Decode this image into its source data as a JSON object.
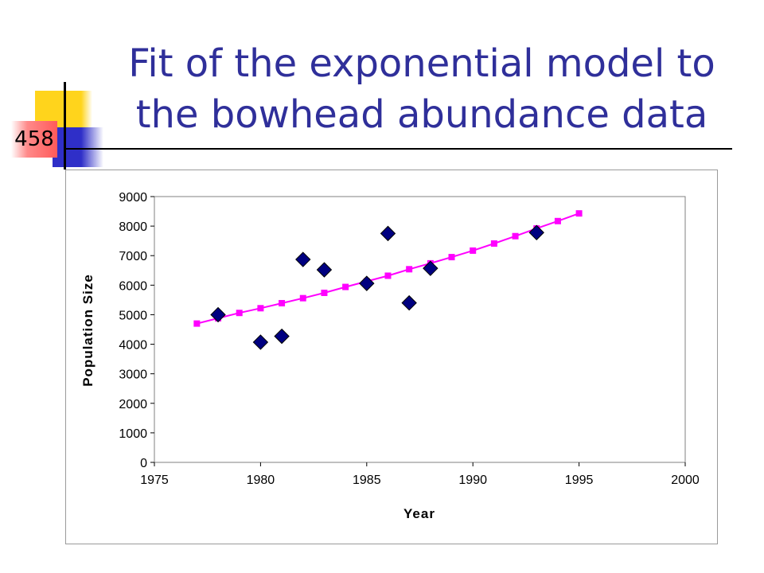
{
  "slide": {
    "number": "458",
    "title_line1": "Fit of the exponential model to",
    "title_line2": "the bowhead abundance data",
    "title_color": "#2f2f9a"
  },
  "chart_data": {
    "type": "scatter",
    "xlabel": "Year",
    "ylabel": "Population Size",
    "xlim": [
      1975,
      2000
    ],
    "ylim": [
      0,
      9000
    ],
    "x_ticks": [
      1975,
      1980,
      1985,
      1990,
      1995,
      2000
    ],
    "y_ticks": [
      0,
      1000,
      2000,
      3000,
      4000,
      5000,
      6000,
      7000,
      8000,
      9000
    ],
    "grid": false,
    "series": [
      {
        "marker": "diamond",
        "color": "#000080",
        "x": [
          1978,
          1980,
          1981,
          1982,
          1983,
          1985,
          1986,
          1987,
          1988,
          1993
        ],
        "y": [
          5000,
          4070,
          4270,
          6870,
          6520,
          6060,
          7750,
          5400,
          6570,
          7780
        ]
      },
      {
        "marker": "square",
        "line": true,
        "color": "#ff00ff",
        "x": [
          1977,
          1978,
          1979,
          1980,
          1981,
          1982,
          1983,
          1984,
          1985,
          1986,
          1987,
          1988,
          1989,
          1990,
          1991,
          1992,
          1993,
          1994,
          1995
        ],
        "y": [
          4700,
          4880,
          5060,
          5220,
          5390,
          5560,
          5740,
          5940,
          6130,
          6320,
          6540,
          6740,
          6950,
          7170,
          7410,
          7660,
          7920,
          8170,
          8430
        ]
      }
    ]
  }
}
